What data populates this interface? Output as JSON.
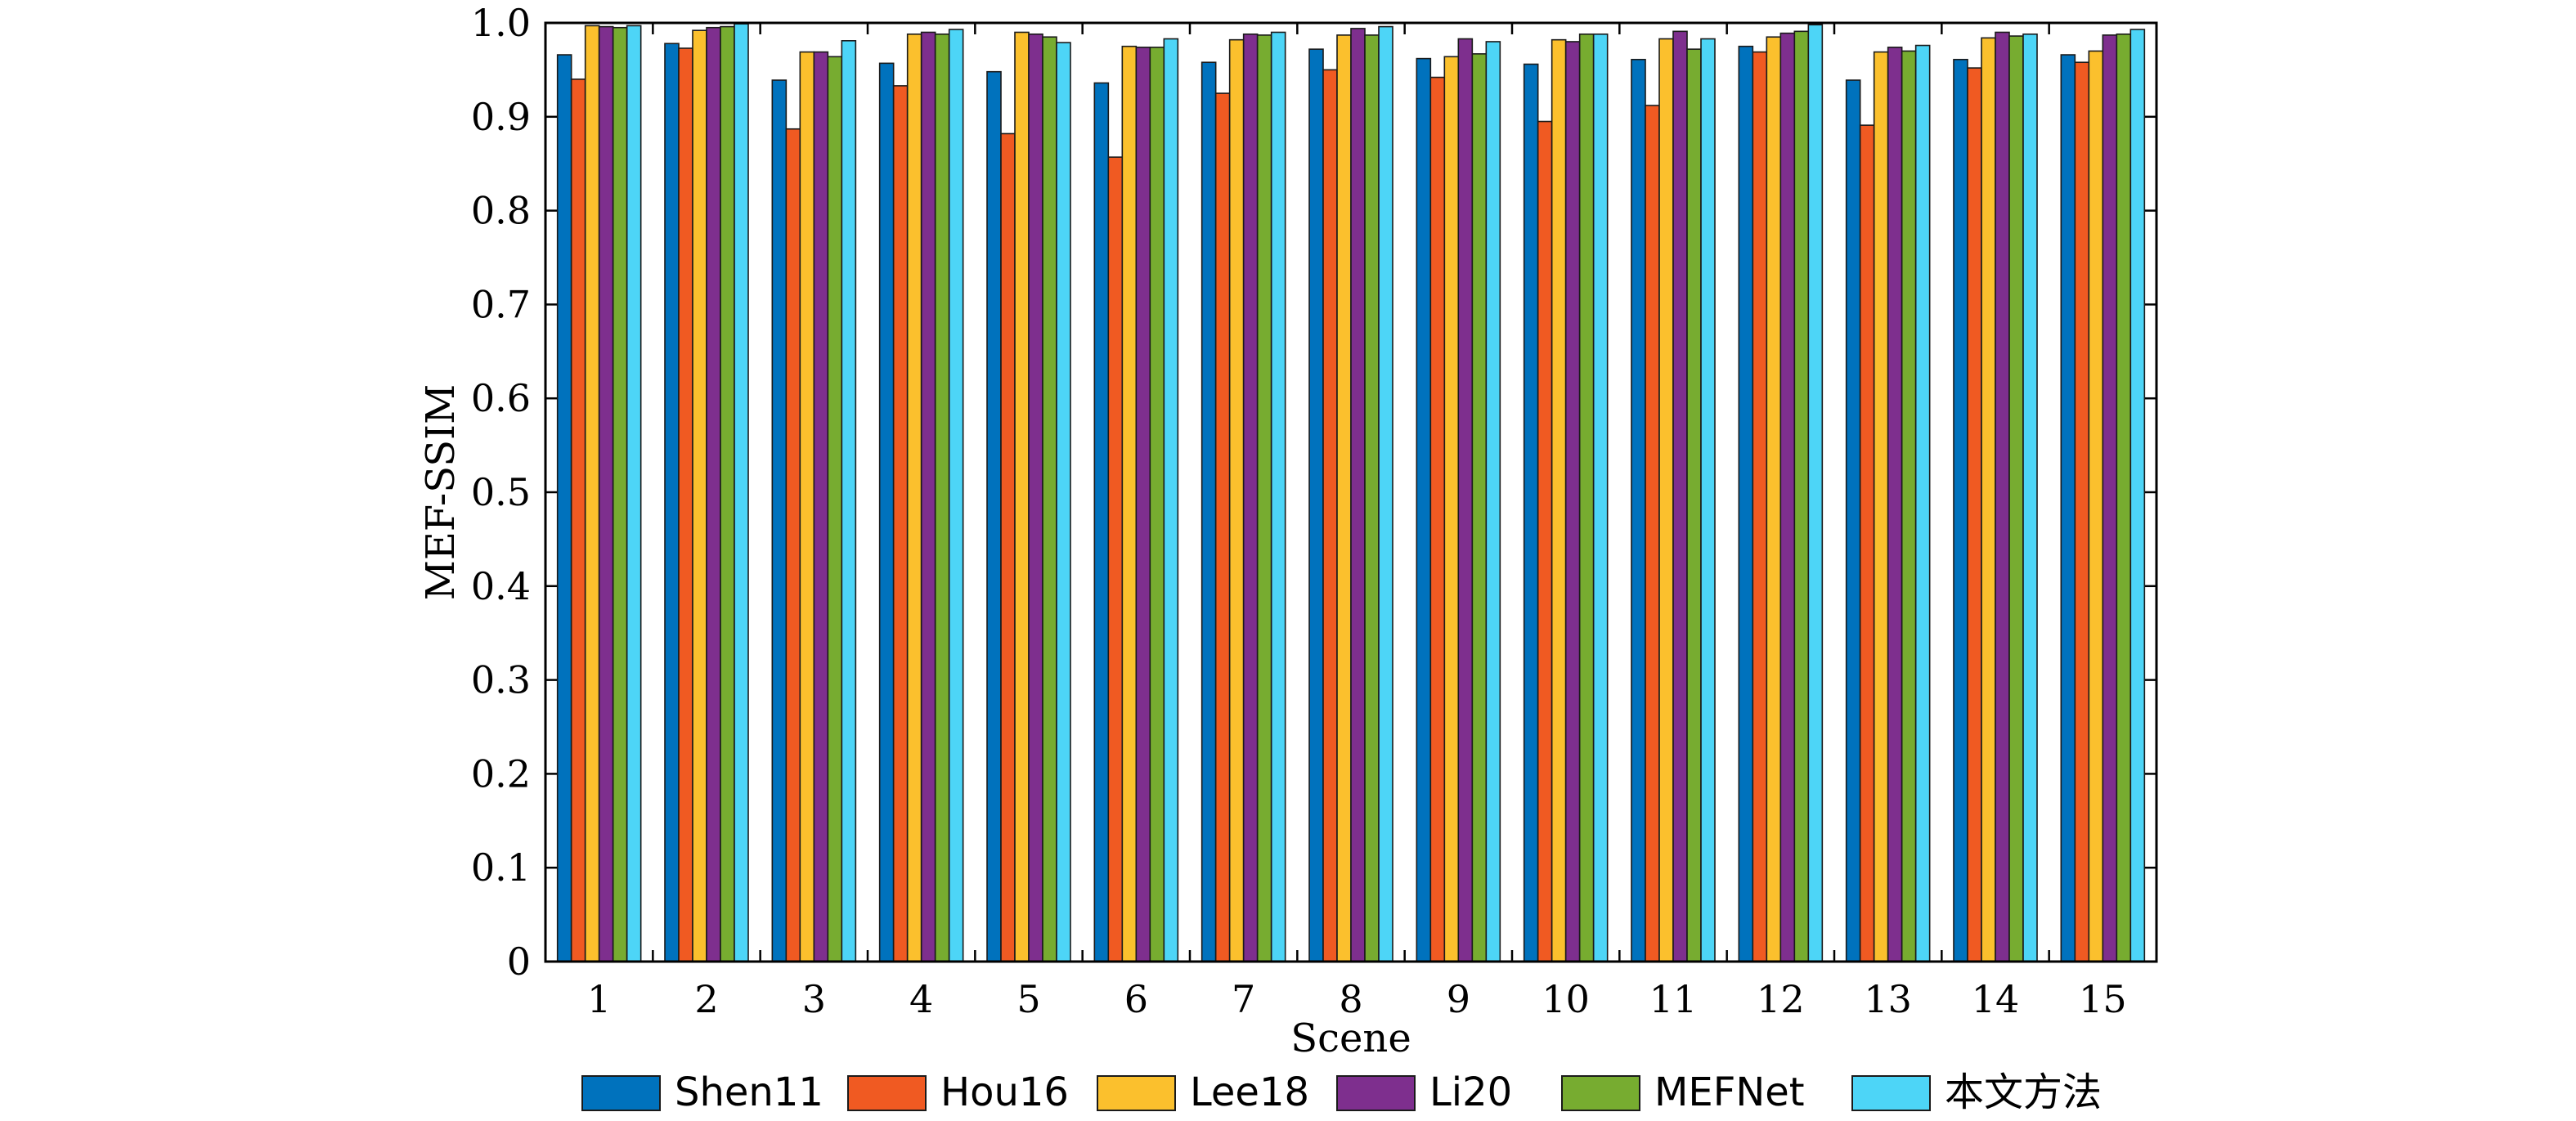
{
  "chart_data": {
    "type": "bar",
    "title": "",
    "xlabel": "Scene",
    "ylabel": "MEF-SSIM",
    "ylim": [
      0,
      1.0
    ],
    "yticks": [
      0,
      0.1,
      0.2,
      0.3,
      0.4,
      0.5,
      0.6,
      0.7,
      0.8,
      0.9,
      1.0
    ],
    "ytick_labels": [
      "0",
      "0.1",
      "0.2",
      "0.3",
      "0.4",
      "0.5",
      "0.6",
      "0.7",
      "0.8",
      "0.9",
      "1.0"
    ],
    "categories": [
      "1",
      "2",
      "3",
      "4",
      "5",
      "6",
      "7",
      "8",
      "9",
      "10",
      "11",
      "12",
      "13",
      "14",
      "15"
    ],
    "grid": false,
    "legend_position": "bottom",
    "series": [
      {
        "name": "Shen11",
        "color": "#0072bd",
        "values": [
          0.966,
          0.978,
          0.939,
          0.957,
          0.948,
          0.936,
          0.958,
          0.972,
          0.962,
          0.956,
          0.961,
          0.975,
          0.939,
          0.961,
          0.966
        ]
      },
      {
        "name": "Hou16",
        "color": "#f05a22",
        "values": [
          0.94,
          0.973,
          0.887,
          0.933,
          0.882,
          0.857,
          0.925,
          0.95,
          0.942,
          0.895,
          0.912,
          0.969,
          0.891,
          0.952,
          0.958
        ]
      },
      {
        "name": "Lee18",
        "color": "#fbc02d",
        "values": [
          0.997,
          0.992,
          0.969,
          0.988,
          0.99,
          0.975,
          0.982,
          0.987,
          0.964,
          0.982,
          0.983,
          0.985,
          0.969,
          0.984,
          0.97
        ]
      },
      {
        "name": "Li20",
        "color": "#7e2f8e",
        "values": [
          0.996,
          0.995,
          0.969,
          0.99,
          0.988,
          0.974,
          0.988,
          0.994,
          0.983,
          0.98,
          0.991,
          0.989,
          0.974,
          0.99,
          0.987
        ]
      },
      {
        "name": "MEFNet",
        "color": "#77ac30",
        "values": [
          0.995,
          0.996,
          0.964,
          0.988,
          0.985,
          0.974,
          0.987,
          0.987,
          0.967,
          0.988,
          0.972,
          0.991,
          0.97,
          0.986,
          0.988
        ]
      },
      {
        "name": "本文方法",
        "color": "#4dd5f7",
        "values": [
          0.997,
          0.999,
          0.981,
          0.993,
          0.979,
          0.983,
          0.99,
          0.996,
          0.98,
          0.988,
          0.983,
          0.998,
          0.976,
          0.988,
          0.993
        ]
      }
    ]
  }
}
